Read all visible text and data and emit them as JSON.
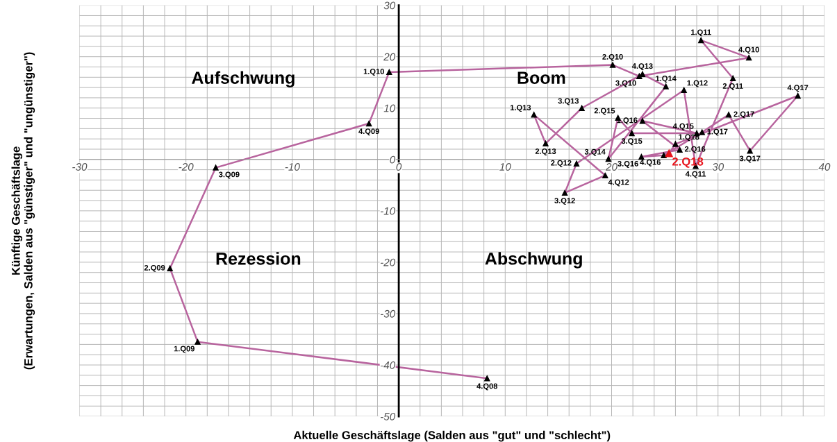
{
  "chart_data": {
    "type": "line",
    "xlabel": "Aktuelle Geschäftslage (Salden aus \"gut\" und \"schlecht\")",
    "ylabel": "Künftige Geschäftslage\n(Erwartungen, Salden aus \"günstiger\" und \"ungünstiger\")",
    "xlim": [
      -30,
      40
    ],
    "ylim": [
      -50,
      30
    ],
    "xticks": [
      -30,
      -20,
      -10,
      0,
      10,
      20,
      30,
      40
    ],
    "yticks": [
      -50,
      -40,
      -30,
      -20,
      -10,
      0,
      10,
      20,
      30
    ],
    "grid": true,
    "marker": "triangle",
    "series": [
      {
        "type": "line",
        "color": "#b8649e",
        "x": [
          8.3,
          -18.9,
          -21.5,
          -17.2,
          -2.8,
          -0.9,
          20.1,
          22.6,
          32.9,
          28.4,
          31.4,
          27.9,
          26.8,
          16.7,
          15.6,
          19.4,
          12.7,
          13.8,
          17.2,
          22.9,
          25.1,
          19.7,
          20.6,
          21.9,
          28.0,
          22.9,
          26.4,
          22.8,
          24.9,
          28.5,
          31.0,
          33.0,
          37.5,
          26.0,
          25.4
        ],
        "values": [
          -42.6,
          -35.5,
          -21.2,
          -1.6,
          7.0,
          17.0,
          18.4,
          16.2,
          19.8,
          23.2,
          15.8,
          -1.3,
          13.5,
          -0.8,
          -6.5,
          -3.1,
          8.7,
          3.1,
          10.0,
          16.6,
          14.2,
          0.1,
          8.1,
          5.1,
          5.1,
          7.5,
          1.9,
          0.5,
          0.8,
          5.3,
          8.7,
          1.7,
          12.4,
          3.0,
          1.2
        ]
      },
      {
        "type": "scatter",
        "name": "2.Q18",
        "color": "#e8141c",
        "x": [
          25.4
        ],
        "values": [
          1.2
        ]
      }
    ],
    "annotations": [
      "Aufschwung",
      "Boom",
      "Rezession",
      "Abschwung",
      {
        "text": "4.Q08",
        "x": 8.3,
        "y": -42.6
      },
      {
        "text": "1.Q09",
        "x": -18.9,
        "y": -35.5
      },
      {
        "text": "2.Q09",
        "x": -21.5,
        "y": -21.2
      },
      {
        "text": "3.Q09",
        "x": -17.2,
        "y": -1.6
      },
      {
        "text": "4.Q09",
        "x": -2.8,
        "y": 7.0
      },
      {
        "text": "1.Q10",
        "x": -0.9,
        "y": 17.0
      },
      {
        "text": "2.Q10",
        "x": 20.1,
        "y": 18.4
      },
      {
        "text": "3.Q10",
        "x": 22.6,
        "y": 16.2
      },
      {
        "text": "4.Q10",
        "x": 32.9,
        "y": 19.8
      },
      {
        "text": "1.Q11",
        "x": 28.4,
        "y": 23.2
      },
      {
        "text": "2.Q11",
        "x": 31.4,
        "y": 15.8
      },
      {
        "text": "4.Q11",
        "x": 27.9,
        "y": -1.3
      },
      {
        "text": "1.Q12",
        "x": 26.8,
        "y": 13.5
      },
      {
        "text": "2.Q12",
        "x": 16.7,
        "y": -0.8
      },
      {
        "text": "3.Q12",
        "x": 15.6,
        "y": -6.5
      },
      {
        "text": "4.Q12",
        "x": 19.4,
        "y": -3.1
      },
      {
        "text": "1.Q13",
        "x": 12.7,
        "y": 8.7
      },
      {
        "text": "2.Q13",
        "x": 13.8,
        "y": 3.1
      },
      {
        "text": "3.Q13",
        "x": 17.2,
        "y": 10.0
      },
      {
        "text": "4.Q13",
        "x": 22.9,
        "y": 16.6
      },
      {
        "text": "1.Q14",
        "x": 25.1,
        "y": 14.2
      },
      {
        "text": "3.Q14",
        "x": 19.7,
        "y": 0.1
      },
      {
        "text": "2.Q15",
        "x": 20.6,
        "y": 8.1
      },
      {
        "text": "3.Q15",
        "x": 21.9,
        "y": 5.1
      },
      {
        "text": "4.Q15",
        "x": 28.0,
        "y": 5.1
      },
      {
        "text": "1.Q16",
        "x": 22.9,
        "y": 7.5
      },
      {
        "text": "2.Q16",
        "x": 26.4,
        "y": 1.9
      },
      {
        "text": "3.Q16",
        "x": 22.8,
        "y": 0.5
      },
      {
        "text": "4.Q16",
        "x": 24.9,
        "y": 0.8
      },
      {
        "text": "1.Q17",
        "x": 28.5,
        "y": 5.3
      },
      {
        "text": "2.Q17",
        "x": 31.0,
        "y": 8.7
      },
      {
        "text": "3.Q17",
        "x": 33.0,
        "y": 1.7
      },
      {
        "text": "4.Q17",
        "x": 37.5,
        "y": 12.4
      },
      {
        "text": "1.Q18",
        "x": 26.0,
        "y": 3.0
      }
    ]
  }
}
